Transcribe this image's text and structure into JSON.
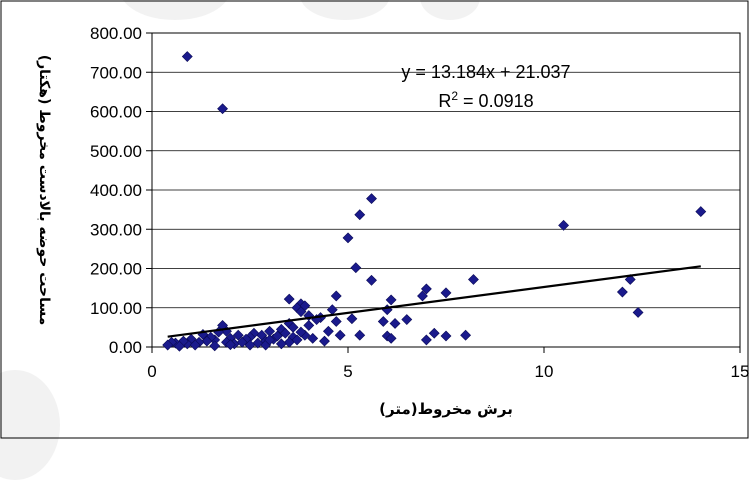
{
  "chart_data": {
    "type": "scatter",
    "xlabel": "برش مخروط(متر)",
    "ylabel": "مساحت حوضه بالادست مخروط (هکتار)",
    "xlim": [
      0,
      15
    ],
    "ylim": [
      0,
      800
    ],
    "x_ticks": [
      "0",
      "5",
      "10",
      "15"
    ],
    "y_ticks": [
      "0.00",
      "100.00",
      "200.00",
      "300.00",
      "400.00",
      "500.00",
      "600.00",
      "700.00",
      "800.00"
    ],
    "marker_color": "#1a1a8c",
    "trendline": {
      "slope": 13.184,
      "intercept": 21.037,
      "x_range": [
        0.4,
        14
      ],
      "equation": "y = 13.184x + 21.037",
      "r2_prefix": "R",
      "r2_sup": "2",
      "r2_value": " = 0.0918"
    },
    "points": [
      [
        0.9,
        740
      ],
      [
        1.8,
        607
      ],
      [
        5.6,
        378
      ],
      [
        5.3,
        337
      ],
      [
        5.0,
        278
      ],
      [
        14.0,
        345
      ],
      [
        10.5,
        310
      ],
      [
        5.2,
        202
      ],
      [
        5.6,
        170
      ],
      [
        8.2,
        172
      ],
      [
        12.2,
        172
      ],
      [
        7.0,
        148
      ],
      [
        6.9,
        130
      ],
      [
        7.5,
        138
      ],
      [
        12.0,
        140
      ],
      [
        12.4,
        88
      ],
      [
        4.7,
        130
      ],
      [
        3.5,
        122
      ],
      [
        3.8,
        110
      ],
      [
        3.9,
        105
      ],
      [
        3.7,
        100
      ],
      [
        4.6,
        95
      ],
      [
        3.8,
        90
      ],
      [
        4.3,
        75
      ],
      [
        4.0,
        80
      ],
      [
        4.2,
        70
      ],
      [
        6.1,
        120
      ],
      [
        6.0,
        95
      ],
      [
        6.2,
        60
      ],
      [
        6.5,
        70
      ],
      [
        5.9,
        65
      ],
      [
        4.7,
        65
      ],
      [
        5.1,
        72
      ],
      [
        5.3,
        30
      ],
      [
        6.0,
        28
      ],
      [
        6.1,
        22
      ],
      [
        7.2,
        35
      ],
      [
        7.0,
        18
      ],
      [
        7.5,
        28
      ],
      [
        8.0,
        30
      ],
      [
        3.5,
        60
      ],
      [
        3.6,
        50
      ],
      [
        3.3,
        45
      ],
      [
        3.0,
        40
      ],
      [
        2.8,
        30
      ],
      [
        2.6,
        35
      ],
      [
        2.5,
        25
      ],
      [
        2.4,
        20
      ],
      [
        2.2,
        30
      ],
      [
        2.0,
        22
      ],
      [
        1.9,
        40
      ],
      [
        1.8,
        55
      ],
      [
        1.7,
        38
      ],
      [
        1.6,
        18
      ],
      [
        1.5,
        25
      ],
      [
        1.4,
        15
      ],
      [
        1.3,
        32
      ],
      [
        1.2,
        12
      ],
      [
        1.0,
        20
      ],
      [
        0.9,
        8
      ],
      [
        0.8,
        15
      ],
      [
        0.6,
        10
      ],
      [
        0.5,
        12
      ],
      [
        0.4,
        5
      ],
      [
        1.1,
        5
      ],
      [
        2.1,
        8
      ],
      [
        2.3,
        12
      ],
      [
        2.7,
        10
      ],
      [
        2.9,
        15
      ],
      [
        3.1,
        20
      ],
      [
        3.2,
        28
      ],
      [
        3.4,
        35
      ],
      [
        3.6,
        25
      ],
      [
        3.7,
        18
      ],
      [
        3.9,
        30
      ],
      [
        4.1,
        22
      ],
      [
        4.4,
        15
      ],
      [
        4.5,
        40
      ],
      [
        3.5,
        12
      ],
      [
        3.8,
        38
      ],
      [
        4.0,
        55
      ],
      [
        2.9,
        5
      ],
      [
        1.9,
        12
      ],
      [
        2.0,
        6
      ],
      [
        3.3,
        8
      ],
      [
        3.0,
        18
      ],
      [
        4.8,
        30
      ],
      [
        2.5,
        5
      ],
      [
        1.6,
        3
      ],
      [
        0.7,
        2
      ]
    ]
  }
}
